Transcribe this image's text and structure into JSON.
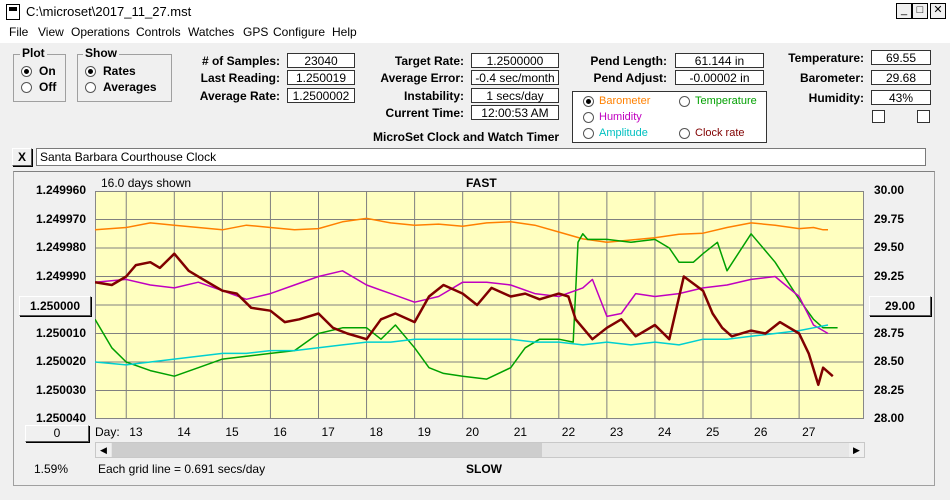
{
  "window": {
    "title": "C:\\microset\\2017_11_27.mst",
    "min": "_",
    "max": "□",
    "close": "✕"
  },
  "menu": [
    "File",
    "View",
    "Operations",
    "Controls",
    "Watches",
    "GPS",
    "Configure",
    "Help"
  ],
  "plot_group": {
    "title": "Plot",
    "on": "On",
    "off": "Off"
  },
  "show_group": {
    "title": "Show",
    "rates": "Rates",
    "averages": "Averages"
  },
  "stats": {
    "samples_label": "# of Samples:",
    "samples": "23040",
    "last_label": "Last Reading:",
    "last": "1.250019",
    "avgrate_label": "Average Rate:",
    "avgrate": "1.2500002",
    "target_label": "Target Rate:",
    "target": "1.2500000",
    "avgerr_label": "Average Error:",
    "avgerr": "-0.4 sec/month",
    "instab_label": "Instability:",
    "instab": "1 secs/day",
    "time_label": "Current Time:",
    "time": "12:00:53 AM",
    "pendlen_label": "Pend Length:",
    "pendlen": "61.144 in",
    "pendadj_label": "Pend Adjust:",
    "pendadj": "-0.00002 in",
    "temp_label": "Temperature:",
    "temp": "69.55",
    "baro_label": "Barometer:",
    "baro": "29.68",
    "hum_label": "Humidity:",
    "hum": "43%"
  },
  "app_caption": "MicroSet Clock and Watch Timer",
  "overlay": {
    "barometer": "Barometer",
    "temperature": "Temperature",
    "humidity": "Humidity",
    "amplitude": "Amplitude",
    "clockrate": "Clock rate",
    "colors": {
      "barometer": "#ff8000",
      "temperature": "#00a000",
      "humidity": "#c000c0",
      "amplitude": "#00c0c0",
      "clockrate": "#800000"
    }
  },
  "watch_name": "Santa Barbara Courthouse Clock",
  "close_x": "X",
  "graph": {
    "days_shown": "16.0 days shown",
    "fast": "FAST",
    "slow": "SLOW",
    "grid_note": "Each grid line = 0.691 secs/day",
    "day_label": "Day:",
    "center_left": "1.250000",
    "center_right": "29.00",
    "zero_button": "0",
    "percent": "1.59%"
  },
  "chart_data": {
    "type": "line",
    "left_axis": {
      "ticks": [
        "1.249960",
        "1.249970",
        "1.249980",
        "1.249990",
        "1.250000",
        "1.250010",
        "1.250020",
        "1.250030",
        "1.250040"
      ],
      "ylim": [
        1.24996,
        1.25004
      ]
    },
    "right_axis": {
      "ticks": [
        "30.00",
        "29.75",
        "29.50",
        "29.25",
        "29.00",
        "28.75",
        "28.50",
        "28.25",
        "28.00"
      ],
      "ylim": [
        28.0,
        30.0
      ]
    },
    "x_ticks": [
      "13",
      "14",
      "15",
      "16",
      "17",
      "18",
      "19",
      "20",
      "21",
      "22",
      "23",
      "24",
      "25",
      "26",
      "27"
    ],
    "xlim": [
      12.35,
      28.35
    ],
    "grid": true,
    "series": [
      {
        "color": "#ff8000",
        "axis": "right",
        "x": [
          12.35,
          13,
          13.5,
          14,
          14.5,
          15,
          15.5,
          16,
          16.5,
          17,
          17.5,
          18,
          18.5,
          19,
          19.5,
          20,
          20.5,
          21,
          21.5,
          22,
          22.5,
          23,
          23.5,
          24,
          24.5,
          25,
          25.5,
          26,
          26.5,
          27,
          27.3,
          27.5,
          27.6
        ],
        "y": [
          29.66,
          29.68,
          29.72,
          29.7,
          29.68,
          29.66,
          29.7,
          29.68,
          29.66,
          29.67,
          29.73,
          29.76,
          29.72,
          29.7,
          29.71,
          29.69,
          29.72,
          29.73,
          29.7,
          29.64,
          29.58,
          29.55,
          29.57,
          29.59,
          29.62,
          29.63,
          29.68,
          29.72,
          29.7,
          29.67,
          29.68,
          29.66,
          29.66
        ]
      },
      {
        "color": "#00a000",
        "axis": "left",
        "x": [
          12.35,
          12.7,
          13,
          13.5,
          14,
          14.5,
          15,
          15.5,
          16,
          16.5,
          17,
          17.5,
          18,
          18.3,
          18.6,
          19,
          19.3,
          19.6,
          20,
          20.5,
          21,
          21.3,
          21.6,
          22,
          22.3,
          22.4,
          22.5,
          22.6,
          23,
          23.5,
          24,
          24.3,
          24.5,
          24.8,
          25,
          25.3,
          25.5,
          26,
          26.5,
          27,
          27.3,
          27.5,
          27.8
        ],
        "y": [
          1.250005,
          1.250015,
          1.25002,
          1.250023,
          1.250025,
          1.250022,
          1.250019,
          1.250018,
          1.250017,
          1.250016,
          1.25001,
          1.250008,
          1.250008,
          1.250012,
          1.250007,
          1.250015,
          1.250022,
          1.250024,
          1.250025,
          1.250026,
          1.250022,
          1.250015,
          1.250012,
          1.250012,
          1.250013,
          1.249978,
          1.249975,
          1.249977,
          1.249977,
          1.249978,
          1.249977,
          1.24998,
          1.249985,
          1.249985,
          1.249982,
          1.249978,
          1.249988,
          1.249975,
          1.249985,
          1.249998,
          1.250005,
          1.250008,
          1.250008
        ]
      },
      {
        "color": "#c000c0",
        "axis": "left",
        "x": [
          12.35,
          13,
          13.5,
          14,
          14.5,
          15,
          15.5,
          16,
          16.5,
          17,
          17.5,
          18,
          18.5,
          19,
          19.5,
          20,
          20.5,
          21,
          21.5,
          22,
          22.5,
          22.7,
          23,
          23.3,
          23.6,
          24,
          24.5,
          25,
          25.5,
          26,
          26.5,
          27,
          27.3,
          27.6
        ],
        "y": [
          1.249992,
          1.249991,
          1.249993,
          1.249994,
          1.249992,
          1.249995,
          1.249998,
          1.249996,
          1.249993,
          1.24999,
          1.249988,
          1.249993,
          1.249996,
          1.249999,
          1.249997,
          1.249992,
          1.249992,
          1.249993,
          1.249996,
          1.249997,
          1.249994,
          1.249991,
          1.250004,
          1.250003,
          1.249996,
          1.249997,
          1.249996,
          1.249994,
          1.249993,
          1.249991,
          1.24999,
          1.249997,
          1.250007,
          1.25001
        ]
      },
      {
        "color": "#00d0d0",
        "axis": "left",
        "x": [
          12.35,
          13,
          13.5,
          14,
          14.5,
          15,
          15.5,
          16,
          16.5,
          17,
          17.5,
          18,
          18.5,
          19,
          19.5,
          20,
          20.5,
          21,
          21.5,
          22,
          22.5,
          23,
          23.5,
          24,
          24.5,
          25,
          25.5,
          26,
          26.5,
          27,
          27.3,
          27.6
        ],
        "y": [
          1.25002,
          1.250021,
          1.25002,
          1.250019,
          1.250018,
          1.250017,
          1.250017,
          1.250016,
          1.250016,
          1.250015,
          1.250014,
          1.250013,
          1.250013,
          1.250012,
          1.250012,
          1.250012,
          1.250012,
          1.250012,
          1.250013,
          1.250013,
          1.250014,
          1.250013,
          1.250014,
          1.250013,
          1.250014,
          1.250012,
          1.250012,
          1.250011,
          1.25001,
          1.250009,
          1.250008,
          1.250007
        ]
      },
      {
        "color": "#800000",
        "axis": "left",
        "x": [
          12.35,
          12.7,
          13,
          13.2,
          13.5,
          13.7,
          14,
          14.3,
          14.6,
          15,
          15.3,
          15.6,
          16,
          16.3,
          16.6,
          17,
          17.3,
          17.6,
          18,
          18.3,
          18.6,
          19,
          19.3,
          19.6,
          20,
          20.3,
          20.6,
          21,
          21.3,
          21.6,
          22,
          22.2,
          22.35,
          22.5,
          22.7,
          23,
          23.3,
          23.6,
          24,
          24.3,
          24.6,
          25,
          25.2,
          25.4,
          25.6,
          26,
          26.3,
          26.6,
          27,
          27.2,
          27.4,
          27.5,
          27.7
        ],
        "y": [
          1.249992,
          1.249993,
          1.24999,
          1.249986,
          1.249985,
          1.249987,
          1.249982,
          1.249988,
          1.249991,
          1.249995,
          1.249996,
          1.250001,
          1.250002,
          1.250006,
          1.250005,
          1.250003,
          1.250008,
          1.25001,
          1.250012,
          1.250005,
          1.250003,
          1.250006,
          1.249997,
          1.249993,
          1.249996,
          1.25,
          1.249994,
          1.249997,
          1.249996,
          1.249998,
          1.249996,
          1.249997,
          1.250005,
          1.250008,
          1.250012,
          1.250008,
          1.250005,
          1.250011,
          1.250007,
          1.250012,
          1.24999,
          1.249995,
          1.250003,
          1.250008,
          1.250011,
          1.250009,
          1.25001,
          1.250006,
          1.25001,
          1.250017,
          1.250028,
          1.250022,
          1.250025
        ]
      }
    ]
  }
}
